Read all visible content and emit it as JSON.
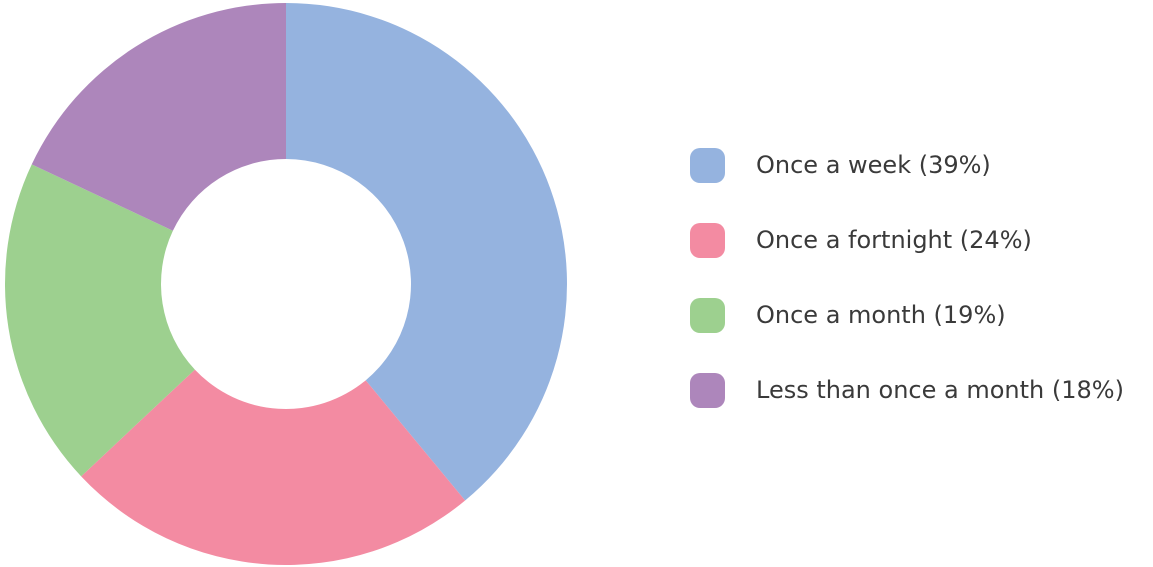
{
  "chart_data": {
    "type": "pie",
    "variant": "donut",
    "title": "",
    "slices": [
      {
        "label": "Once a week",
        "value": 39,
        "color": "#95b3df"
      },
      {
        "label": "Once a fortnight",
        "value": 24,
        "color": "#f38ba2"
      },
      {
        "label": "Once a month",
        "value": 19,
        "color": "#9dd08f"
      },
      {
        "label": "Less than once a month",
        "value": 18,
        "color": "#ad86bb"
      }
    ],
    "legend": {
      "placement": "right",
      "entries": [
        "Once a week (39%)",
        "Once a fortnight (24%)",
        "Once a month (19%)",
        "Less than once a month (18%)"
      ]
    }
  }
}
